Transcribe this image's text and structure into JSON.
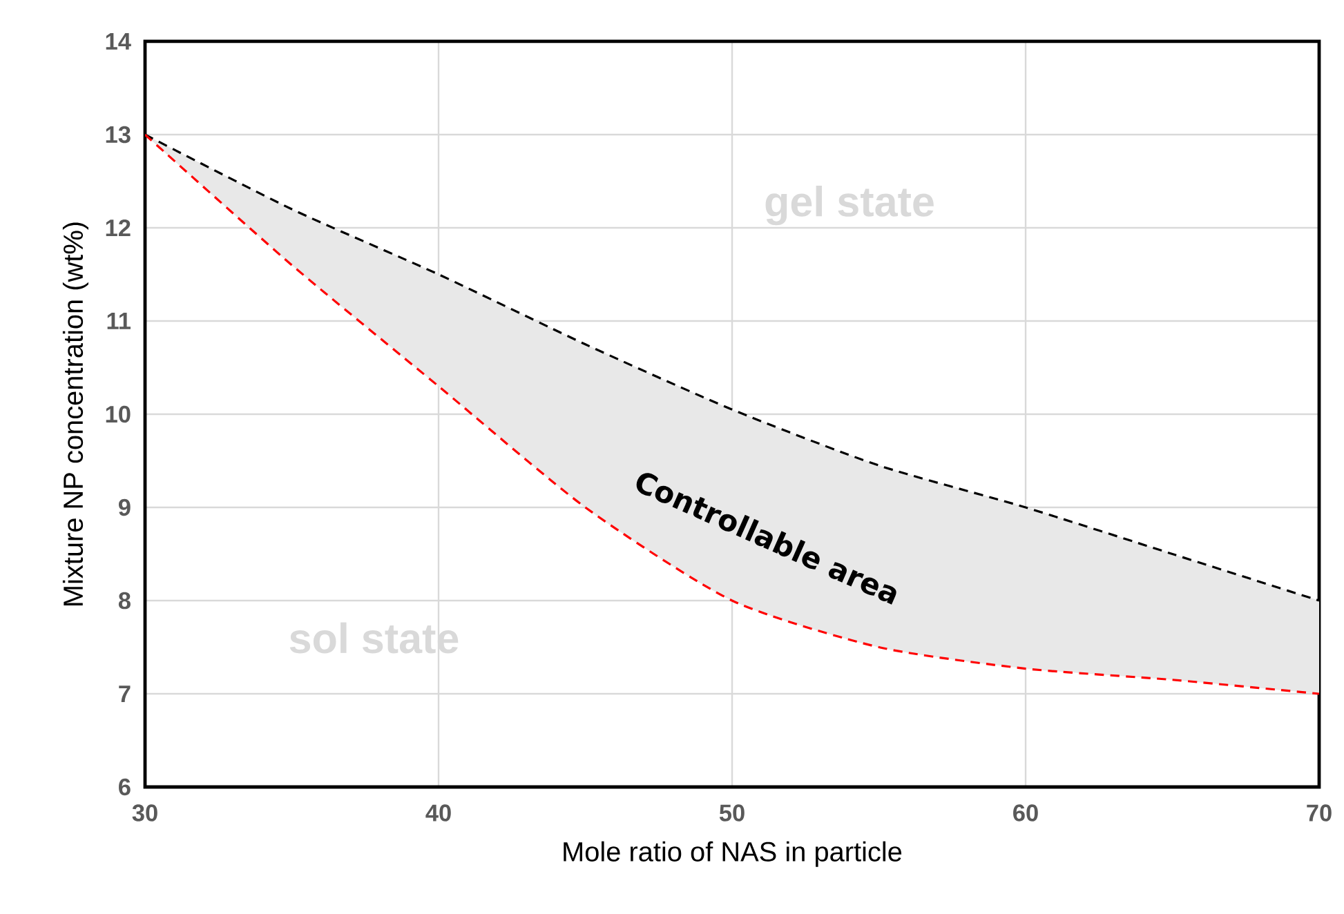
{
  "chart_data": {
    "type": "line",
    "xlabel": "Mole ratio of NAS in particle",
    "ylabel": "Mixture NP concentration (wt%)",
    "x": [
      30,
      35,
      40,
      45,
      50,
      55,
      60,
      65,
      70
    ],
    "series": [
      {
        "color": "#000000",
        "values": [
          13,
          12.2,
          11.5,
          10.75,
          10.05,
          9.45,
          9.0,
          8.5,
          8.0
        ],
        "lower": [
          13,
          11.6,
          10.3,
          9.0,
          8.0,
          7.5,
          7.27,
          7.15,
          7.0
        ],
        "upper": [
          13,
          12.2,
          11.5,
          10.75,
          10.05,
          9.45,
          9.0,
          8.5,
          8.0
        ]
      },
      {
        "color": "#ff0000",
        "values": [
          13,
          11.6,
          10.3,
          9.0,
          8.0,
          7.5,
          7.27,
          7.15,
          7.0
        ]
      }
    ],
    "xlim": [
      30,
      70
    ],
    "ylim": [
      6,
      14
    ],
    "xticks": [
      30,
      40,
      50,
      60,
      70
    ],
    "yticks": [
      6,
      7,
      8,
      9,
      10,
      11,
      12,
      13,
      14
    ],
    "grid": true,
    "line_style": "dashed",
    "annotations": [
      "gel state",
      "Controllable area",
      "sol state"
    ]
  }
}
